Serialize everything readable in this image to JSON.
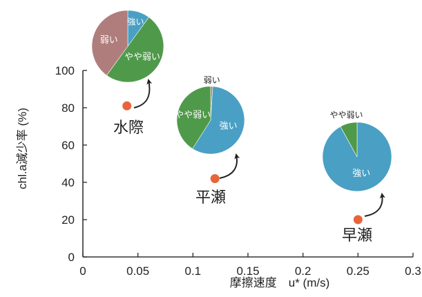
{
  "chart_data": {
    "type": "scatter",
    "title": "",
    "xlabel": "摩擦速度　u* (m/s)",
    "ylabel": "chl.a減少率 (%)",
    "xlim": [
      0,
      0.3
    ],
    "ylim": [
      0,
      100
    ],
    "x_ticks": [
      "0",
      "0.05",
      "0.1",
      "0.15",
      "0.2",
      "0.25",
      "0.3"
    ],
    "y_ticks": [
      "0",
      "20",
      "40",
      "60",
      "80",
      "100"
    ],
    "grid": false,
    "points": [
      {
        "label": "水際",
        "x": 0.04,
        "y": 81
      },
      {
        "label": "平瀬",
        "x": 0.12,
        "y": 42
      },
      {
        "label": "早瀬",
        "x": 0.25,
        "y": 20
      }
    ],
    "pies": [
      {
        "site": "水際",
        "slices": [
          {
            "name": "強い",
            "value": 10,
            "color": "#4a9fc4"
          },
          {
            "name": "やや弱い",
            "value": 50,
            "color": "#4f9a4a"
          },
          {
            "name": "弱い",
            "value": 40,
            "color": "#b07d7d"
          }
        ]
      },
      {
        "site": "平瀬",
        "slices": [
          {
            "name": "弱い",
            "value": 1,
            "color": "#b07d7d"
          },
          {
            "name": "強い",
            "value": 58,
            "color": "#4a9fc4"
          },
          {
            "name": "やや弱い",
            "value": 41,
            "color": "#4f9a4a"
          }
        ]
      },
      {
        "site": "早瀬",
        "slices": [
          {
            "name": "強い",
            "value": 92,
            "color": "#4a9fc4"
          },
          {
            "name": "やや弱い",
            "value": 8,
            "color": "#4f9a4a"
          }
        ]
      }
    ],
    "colors": {
      "point": "#e8653a",
      "axis": "#333333",
      "text": "#222222",
      "pie_label": "#ffffff"
    }
  }
}
